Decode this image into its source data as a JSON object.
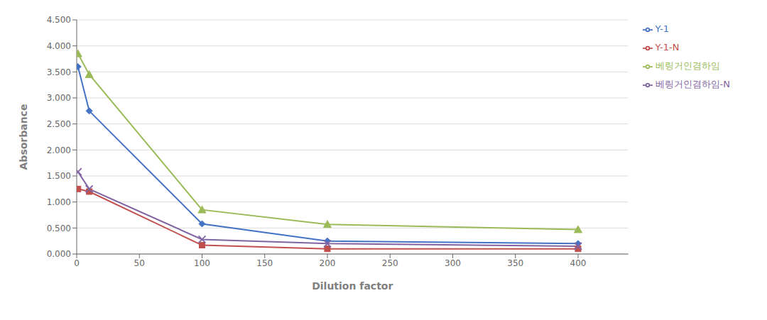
{
  "chart_data": {
    "type": "line",
    "x": [
      1,
      10,
      100,
      200,
      400
    ],
    "series": [
      {
        "name": "Y-1",
        "color": "#4472C4",
        "marker": "diamond",
        "values": [
          3.6,
          2.75,
          0.58,
          0.25,
          0.2
        ]
      },
      {
        "name": "Y-1-N",
        "color": "#C0504D",
        "marker": "square",
        "values": [
          1.25,
          1.2,
          0.17,
          0.1,
          0.1
        ]
      },
      {
        "name": "베링거인겸하임",
        "color": "#9BBB59",
        "marker": "triangle",
        "values": [
          3.85,
          3.45,
          0.85,
          0.57,
          0.47
        ]
      },
      {
        "name": "베링거인겸하임-N",
        "color": "#8064A2",
        "marker": "x",
        "values": [
          1.58,
          1.25,
          0.28,
          0.2,
          0.15
        ]
      }
    ],
    "x_label": "Dilution factor",
    "y_label": "Absorbance",
    "xlim": [
      0,
      440
    ],
    "xticks": [
      0,
      50,
      100,
      150,
      200,
      250,
      300,
      350,
      400
    ],
    "ylim": [
      0.0,
      4.5
    ],
    "yticks": [
      {
        "value": 0.0,
        "label": "0.000"
      },
      {
        "value": 0.5,
        "label": "0.500"
      },
      {
        "value": 1.0,
        "label": "1.000"
      },
      {
        "value": 1.5,
        "label": "1.500"
      },
      {
        "value": 2.0,
        "label": "2.000"
      },
      {
        "value": 2.5,
        "label": "2.500"
      },
      {
        "value": 3.0,
        "label": "3.000"
      },
      {
        "value": 3.5,
        "label": "3.500"
      },
      {
        "value": 4.0,
        "label": "4.000"
      },
      {
        "value": 4.5,
        "label": "4.500"
      }
    ],
    "grid": true,
    "legend": "right"
  }
}
